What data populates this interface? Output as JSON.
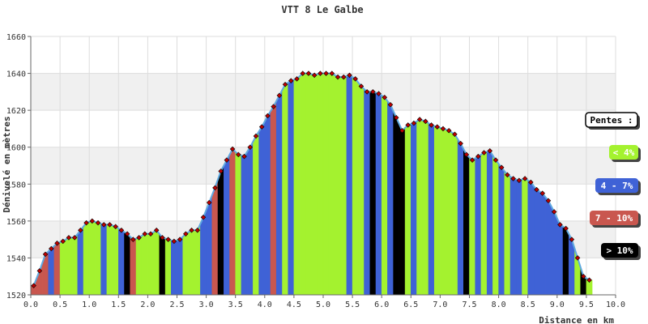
{
  "chart_data": {
    "type": "area",
    "title": "VTT 8 Le Galbe",
    "xlabel": "Distance en km",
    "ylabel": "Dénivelé en mètres",
    "xlim": [
      0,
      10
    ],
    "ylim": [
      1520,
      1660
    ],
    "x_ticks": [
      0,
      0.5,
      1,
      1.5,
      2,
      2.5,
      3,
      3.5,
      4,
      4.5,
      5,
      5.5,
      6,
      6.5,
      7,
      7.5,
      8,
      8.5,
      9,
      9.5,
      10
    ],
    "x_tick_labels": [
      "0.0",
      "0.5",
      "1.0",
      "1.5",
      "2.0",
      "2.5",
      "3.0",
      "3.5",
      "4.0",
      "4.5",
      "5.0",
      "5.5",
      "6.0",
      "6.5",
      "7.0",
      "7.5",
      "8.0",
      "8.5",
      "9.0",
      "9.5",
      "10.0"
    ],
    "y_ticks": [
      1520,
      1540,
      1560,
      1580,
      1600,
      1620,
      1640,
      1660
    ],
    "grid": true,
    "legend_position": "right",
    "legend": {
      "title": "Pentes :",
      "entries": [
        {
          "label": "< 4%",
          "color": "#a4f22f",
          "text_color": "#ffffff"
        },
        {
          "label": "4 - 7%",
          "color": "#3f62d6",
          "text_color": "#ffffff"
        },
        {
          "label": "7 - 10%",
          "color": "#c9574f",
          "text_color": "#ffffff"
        },
        {
          "label": "> 10%",
          "color": "#000000",
          "text_color": "#ffffff"
        }
      ]
    },
    "x": [
      0.05,
      0.15,
      0.25,
      0.35,
      0.45,
      0.55,
      0.65,
      0.75,
      0.85,
      0.95,
      1.05,
      1.15,
      1.25,
      1.35,
      1.45,
      1.55,
      1.65,
      1.75,
      1.85,
      1.95,
      2.05,
      2.15,
      2.25,
      2.35,
      2.45,
      2.55,
      2.65,
      2.75,
      2.85,
      2.95,
      3.05,
      3.15,
      3.25,
      3.35,
      3.45,
      3.55,
      3.65,
      3.75,
      3.85,
      3.95,
      4.05,
      4.15,
      4.25,
      4.35,
      4.45,
      4.55,
      4.65,
      4.75,
      4.85,
      4.95,
      5.05,
      5.15,
      5.25,
      5.35,
      5.45,
      5.55,
      5.65,
      5.75,
      5.85,
      5.95,
      6.05,
      6.15,
      6.25,
      6.35,
      6.45,
      6.55,
      6.65,
      6.75,
      6.85,
      6.95,
      7.05,
      7.15,
      7.25,
      7.35,
      7.45,
      7.55,
      7.65,
      7.75,
      7.85,
      7.95,
      8.05,
      8.15,
      8.25,
      8.35,
      8.45,
      8.55,
      8.65,
      8.75,
      8.85,
      8.95,
      9.05,
      9.15,
      9.25,
      9.35,
      9.45,
      9.55
    ],
    "values": [
      1525,
      1533,
      1542,
      1545,
      1548,
      1549,
      1551,
      1551,
      1555,
      1559,
      1560,
      1559,
      1558,
      1558,
      1557,
      1555,
      1553,
      1550,
      1551,
      1553,
      1553,
      1555,
      1551,
      1550,
      1549,
      1550,
      1553,
      1555,
      1555,
      1562,
      1570,
      1578,
      1587,
      1593,
      1599,
      1596,
      1595,
      1600,
      1606,
      1611,
      1617,
      1622,
      1628,
      1634,
      1636,
      1637,
      1640,
      1640,
      1639,
      1640,
      1640,
      1640,
      1638,
      1638,
      1639,
      1637,
      1633,
      1630,
      1630,
      1629,
      1627,
      1623,
      1616,
      1609,
      1612,
      1613,
      1615,
      1614,
      1612,
      1611,
      1610,
      1609,
      1607,
      1602,
      1596,
      1593,
      1595,
      1597,
      1598,
      1593,
      1589,
      1585,
      1583,
      1582,
      1583,
      1581,
      1577,
      1575,
      1571,
      1565,
      1558,
      1556,
      1550,
      1540,
      1530,
      1528
    ],
    "slopes": [
      "c",
      "c",
      "c",
      "b",
      "c",
      "a",
      "a",
      "a",
      "b",
      "a",
      "a",
      "a",
      "b",
      "a",
      "a",
      "b",
      "d",
      "c",
      "a",
      "a",
      "a",
      "a",
      "d",
      "a",
      "b",
      "b",
      "a",
      "a",
      "a",
      "b",
      "b",
      "c",
      "d",
      "b",
      "c",
      "a",
      "b",
      "b",
      "a",
      "b",
      "b",
      "c",
      "b",
      "a",
      "b",
      "a",
      "a",
      "a",
      "a",
      "a",
      "a",
      "a",
      "a",
      "a",
      "b",
      "a",
      "a",
      "b",
      "d",
      "b",
      "a",
      "b",
      "d",
      "d",
      "a",
      "b",
      "a",
      "a",
      "b",
      "a",
      "a",
      "a",
      "a",
      "b",
      "d",
      "a",
      "b",
      "a",
      "b",
      "a",
      "b",
      "a",
      "b",
      "b",
      "a",
      "b",
      "b",
      "b",
      "b",
      "b",
      "b",
      "d",
      "b",
      "a",
      "d",
      "a"
    ]
  }
}
